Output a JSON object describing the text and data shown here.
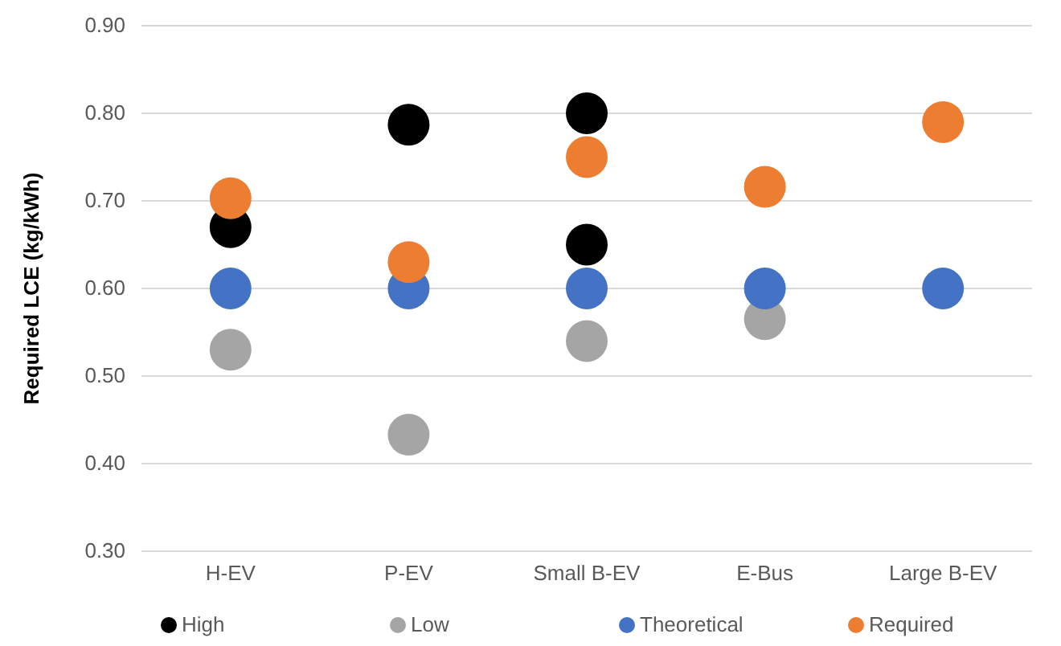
{
  "chart_data": {
    "type": "scatter",
    "ylabel": "Required LCE (kg/kWh)",
    "categories": [
      "H-EV",
      "P-EV",
      "Small B-EV",
      "E-Bus",
      "Large B-EV"
    ],
    "series": [
      {
        "name": "High",
        "color": "#000000",
        "x": [
          "H-EV",
          "P-EV",
          "Small B-EV",
          "Small B-EV"
        ],
        "values": [
          0.67,
          0.787,
          0.8,
          0.65
        ]
      },
      {
        "name": "Low",
        "color": "#a5a5a5",
        "values": [
          0.53,
          0.433,
          0.54,
          0.565,
          null
        ]
      },
      {
        "name": "Theoretical",
        "color": "#4472c4",
        "values": [
          0.6,
          0.6,
          0.6,
          0.6,
          0.6
        ]
      },
      {
        "name": "Required",
        "color": "#ed7d31",
        "values": [
          0.703,
          0.63,
          0.75,
          0.716,
          0.79
        ]
      }
    ],
    "ylim": [
      0.3,
      0.9
    ],
    "yticks": [
      {
        "value": 0.3,
        "label": "0.30"
      },
      {
        "value": 0.4,
        "label": "0.40"
      },
      {
        "value": 0.5,
        "label": "0.50"
      },
      {
        "value": 0.6,
        "label": "0.60"
      },
      {
        "value": 0.7,
        "label": "0.70"
      },
      {
        "value": 0.8,
        "label": "0.80"
      },
      {
        "value": 0.9,
        "label": "0.90"
      }
    ],
    "grid": "y",
    "legend": "bottom",
    "marker": "circle"
  }
}
